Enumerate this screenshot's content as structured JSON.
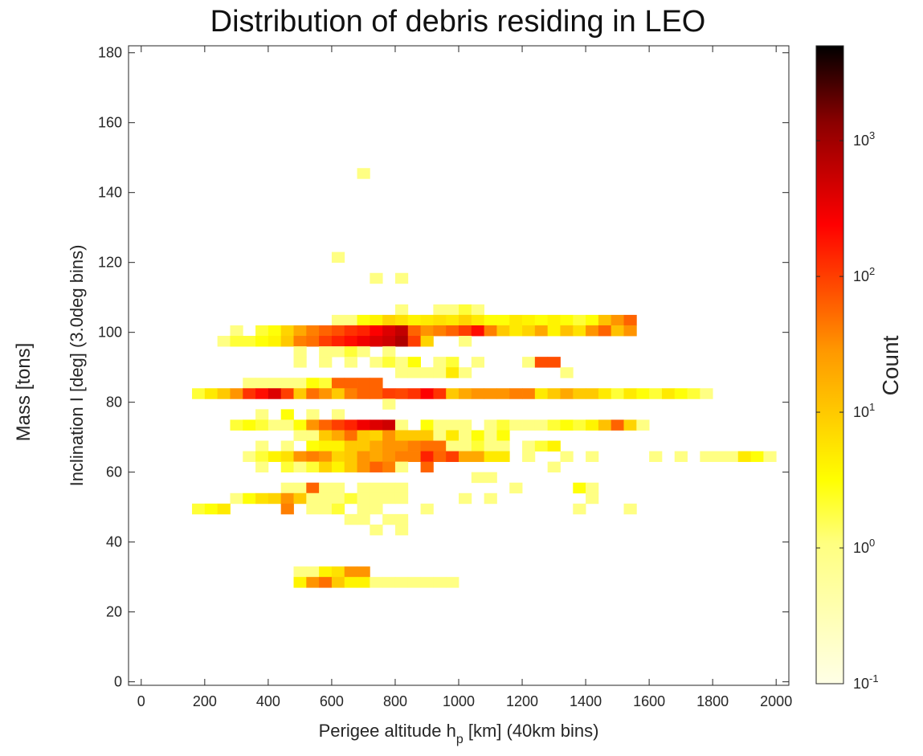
{
  "chart_data": {
    "type": "heatmap",
    "title": "Distribution of debris residing in LEO",
    "side_label": "Mass [tons]",
    "xlabel_pre": "Perigee altitude h",
    "xlabel_sub": "p",
    "xlabel_post": " [km] (40km bins)",
    "ylabel": "Inclination I [deg] (3.0deg bins)",
    "xlim": [
      -40,
      2040
    ],
    "ylim": [
      -1,
      182
    ],
    "xticks": [
      0,
      200,
      400,
      600,
      800,
      1000,
      1200,
      1400,
      1600,
      1800,
      2000
    ],
    "yticks": [
      0,
      20,
      40,
      60,
      80,
      100,
      120,
      140,
      160,
      180
    ],
    "bin_width_km": 40,
    "bin_height_deg": 3,
    "colorbar": {
      "label": "Count",
      "scale": "log",
      "range": [
        0.1,
        5000
      ],
      "ticks": [
        {
          "value": 0.1,
          "base": "10",
          "exp": "-1"
        },
        {
          "value": 1,
          "base": "10",
          "exp": "0"
        },
        {
          "value": 10,
          "base": "10",
          "exp": "1"
        },
        {
          "value": 100,
          "base": "10",
          "exp": "2"
        },
        {
          "value": 1000,
          "base": "10",
          "exp": "3"
        }
      ]
    },
    "cells": [
      [
        680,
        144,
        1
      ],
      [
        600,
        120,
        1
      ],
      [
        720,
        114,
        1
      ],
      [
        800,
        114,
        1
      ],
      [
        800,
        105,
        1
      ],
      [
        920,
        105,
        1
      ],
      [
        960,
        105,
        1
      ],
      [
        1000,
        105,
        2
      ],
      [
        1040,
        105,
        1
      ],
      [
        880,
        102,
        1
      ],
      [
        600,
        102,
        1
      ],
      [
        640,
        102,
        1
      ],
      [
        680,
        102,
        3
      ],
      [
        720,
        102,
        4
      ],
      [
        760,
        102,
        8
      ],
      [
        800,
        102,
        6
      ],
      [
        840,
        102,
        4
      ],
      [
        880,
        102,
        5
      ],
      [
        920,
        102,
        6
      ],
      [
        960,
        102,
        5
      ],
      [
        1000,
        102,
        8
      ],
      [
        1040,
        102,
        5
      ],
      [
        1080,
        102,
        3
      ],
      [
        1120,
        102,
        3
      ],
      [
        1160,
        102,
        5
      ],
      [
        1200,
        102,
        4
      ],
      [
        1240,
        102,
        3
      ],
      [
        1280,
        102,
        4
      ],
      [
        1320,
        102,
        3
      ],
      [
        1360,
        102,
        2
      ],
      [
        1400,
        102,
        3
      ],
      [
        1440,
        102,
        12
      ],
      [
        1480,
        102,
        30
      ],
      [
        1520,
        102,
        60
      ],
      [
        280,
        99,
        1
      ],
      [
        360,
        99,
        2
      ],
      [
        400,
        99,
        3
      ],
      [
        440,
        99,
        8
      ],
      [
        480,
        99,
        20
      ],
      [
        520,
        99,
        40
      ],
      [
        560,
        99,
        60
      ],
      [
        600,
        99,
        80
      ],
      [
        640,
        99,
        120
      ],
      [
        680,
        99,
        150
      ],
      [
        720,
        99,
        250
      ],
      [
        760,
        99,
        400
      ],
      [
        800,
        99,
        600
      ],
      [
        840,
        99,
        60
      ],
      [
        880,
        99,
        30
      ],
      [
        920,
        99,
        40
      ],
      [
        960,
        99,
        60
      ],
      [
        1000,
        99,
        100
      ],
      [
        1040,
        99,
        200
      ],
      [
        1080,
        99,
        40
      ],
      [
        1120,
        99,
        10
      ],
      [
        1160,
        99,
        5
      ],
      [
        1200,
        99,
        8
      ],
      [
        1240,
        99,
        20
      ],
      [
        1280,
        99,
        4
      ],
      [
        1320,
        99,
        12
      ],
      [
        1360,
        99,
        6
      ],
      [
        1400,
        99,
        30
      ],
      [
        1440,
        99,
        60
      ],
      [
        1480,
        99,
        12
      ],
      [
        1520,
        99,
        30
      ],
      [
        240,
        96,
        1
      ],
      [
        280,
        96,
        2
      ],
      [
        320,
        96,
        2
      ],
      [
        360,
        96,
        3
      ],
      [
        400,
        96,
        4
      ],
      [
        440,
        96,
        10
      ],
      [
        480,
        96,
        40
      ],
      [
        520,
        96,
        50
      ],
      [
        560,
        96,
        100
      ],
      [
        600,
        96,
        150
      ],
      [
        640,
        96,
        200
      ],
      [
        680,
        96,
        300
      ],
      [
        720,
        96,
        400
      ],
      [
        760,
        96,
        500
      ],
      [
        800,
        96,
        800
      ],
      [
        840,
        96,
        100
      ],
      [
        880,
        96,
        8
      ],
      [
        1000,
        96,
        1
      ],
      [
        480,
        93,
        1
      ],
      [
        560,
        93,
        1
      ],
      [
        600,
        93,
        1
      ],
      [
        640,
        93,
        2
      ],
      [
        680,
        93,
        1
      ],
      [
        760,
        93,
        1
      ],
      [
        480,
        90,
        1
      ],
      [
        560,
        90,
        1
      ],
      [
        640,
        90,
        1
      ],
      [
        720,
        90,
        1
      ],
      [
        760,
        90,
        2
      ],
      [
        800,
        90,
        1
      ],
      [
        840,
        90,
        3
      ],
      [
        920,
        90,
        1
      ],
      [
        960,
        90,
        2
      ],
      [
        1040,
        90,
        1
      ],
      [
        1200,
        90,
        1
      ],
      [
        1240,
        90,
        80
      ],
      [
        1280,
        90,
        80
      ],
      [
        800,
        87,
        1
      ],
      [
        840,
        87,
        1
      ],
      [
        880,
        87,
        1
      ],
      [
        920,
        87,
        1
      ],
      [
        960,
        87,
        5
      ],
      [
        1000,
        87,
        1
      ],
      [
        1320,
        87,
        1
      ],
      [
        440,
        84,
        1
      ],
      [
        480,
        84,
        1
      ],
      [
        520,
        84,
        3
      ],
      [
        560,
        84,
        2
      ],
      [
        600,
        84,
        60
      ],
      [
        640,
        84,
        60
      ],
      [
        680,
        84,
        60
      ],
      [
        720,
        84,
        60
      ],
      [
        320,
        84,
        1
      ],
      [
        360,
        84,
        1
      ],
      [
        400,
        84,
        1
      ],
      [
        160,
        81,
        2
      ],
      [
        200,
        81,
        5
      ],
      [
        240,
        81,
        10
      ],
      [
        280,
        81,
        30
      ],
      [
        320,
        81,
        120
      ],
      [
        360,
        81,
        200
      ],
      [
        400,
        81,
        400
      ],
      [
        440,
        81,
        100
      ],
      [
        480,
        81,
        10
      ],
      [
        520,
        81,
        50
      ],
      [
        560,
        81,
        30
      ],
      [
        600,
        81,
        10
      ],
      [
        640,
        81,
        40
      ],
      [
        680,
        81,
        60
      ],
      [
        720,
        81,
        60
      ],
      [
        760,
        81,
        100
      ],
      [
        800,
        81,
        90
      ],
      [
        840,
        81,
        120
      ],
      [
        880,
        81,
        250
      ],
      [
        920,
        81,
        120
      ],
      [
        960,
        81,
        10
      ],
      [
        1000,
        81,
        20
      ],
      [
        1040,
        81,
        30
      ],
      [
        1080,
        81,
        30
      ],
      [
        1120,
        81,
        30
      ],
      [
        1160,
        81,
        40
      ],
      [
        1200,
        81,
        40
      ],
      [
        1240,
        81,
        5
      ],
      [
        1280,
        81,
        10
      ],
      [
        1320,
        81,
        20
      ],
      [
        1360,
        81,
        10
      ],
      [
        1400,
        81,
        10
      ],
      [
        1440,
        81,
        5
      ],
      [
        1480,
        81,
        2
      ],
      [
        1520,
        81,
        5
      ],
      [
        1560,
        81,
        3
      ],
      [
        1600,
        81,
        2
      ],
      [
        1640,
        81,
        5
      ],
      [
        1680,
        81,
        3
      ],
      [
        1720,
        81,
        2
      ],
      [
        1760,
        81,
        1
      ],
      [
        760,
        78,
        1
      ],
      [
        360,
        75,
        1
      ],
      [
        440,
        75,
        3
      ],
      [
        520,
        75,
        1
      ],
      [
        600,
        75,
        1
      ],
      [
        280,
        72,
        2
      ],
      [
        320,
        72,
        3
      ],
      [
        360,
        72,
        2
      ],
      [
        400,
        72,
        1
      ],
      [
        440,
        72,
        1
      ],
      [
        480,
        72,
        3
      ],
      [
        520,
        72,
        30
      ],
      [
        560,
        72,
        60
      ],
      [
        600,
        72,
        100
      ],
      [
        640,
        72,
        150
      ],
      [
        680,
        72,
        300
      ],
      [
        720,
        72,
        400
      ],
      [
        760,
        72,
        500
      ],
      [
        800,
        72,
        1
      ],
      [
        880,
        72,
        3
      ],
      [
        920,
        72,
        1
      ],
      [
        960,
        72,
        1
      ],
      [
        1000,
        72,
        1
      ],
      [
        1080,
        72,
        1
      ],
      [
        1120,
        72,
        2
      ],
      [
        1160,
        72,
        1
      ],
      [
        1200,
        72,
        1
      ],
      [
        1240,
        72,
        1
      ],
      [
        1280,
        72,
        2
      ],
      [
        1320,
        72,
        3
      ],
      [
        1360,
        72,
        2
      ],
      [
        1400,
        72,
        4
      ],
      [
        1440,
        72,
        12
      ],
      [
        1480,
        72,
        60
      ],
      [
        1520,
        72,
        8
      ],
      [
        1560,
        72,
        1
      ],
      [
        480,
        69,
        1
      ],
      [
        520,
        69,
        1
      ],
      [
        560,
        69,
        10
      ],
      [
        600,
        69,
        20
      ],
      [
        640,
        69,
        50
      ],
      [
        680,
        69,
        10
      ],
      [
        720,
        69,
        8
      ],
      [
        760,
        69,
        30
      ],
      [
        800,
        69,
        10
      ],
      [
        840,
        69,
        10
      ],
      [
        880,
        69,
        10
      ],
      [
        920,
        69,
        1
      ],
      [
        960,
        69,
        5
      ],
      [
        1000,
        69,
        1
      ],
      [
        1040,
        69,
        3
      ],
      [
        1080,
        69,
        1
      ],
      [
        1120,
        69,
        3
      ],
      [
        360,
        66,
        1
      ],
      [
        440,
        66,
        1
      ],
      [
        520,
        66,
        3
      ],
      [
        560,
        66,
        4
      ],
      [
        600,
        66,
        4
      ],
      [
        640,
        66,
        10
      ],
      [
        680,
        66,
        10
      ],
      [
        720,
        66,
        20
      ],
      [
        760,
        66,
        30
      ],
      [
        800,
        66,
        30
      ],
      [
        840,
        66,
        40
      ],
      [
        880,
        66,
        50
      ],
      [
        920,
        66,
        50
      ],
      [
        960,
        66,
        1
      ],
      [
        1000,
        66,
        1
      ],
      [
        1040,
        66,
        2
      ],
      [
        1080,
        66,
        1
      ],
      [
        1120,
        66,
        1
      ],
      [
        1200,
        66,
        1
      ],
      [
        1240,
        66,
        2
      ],
      [
        1280,
        66,
        4
      ],
      [
        320,
        63,
        1
      ],
      [
        360,
        63,
        2
      ],
      [
        400,
        63,
        4
      ],
      [
        440,
        63,
        6
      ],
      [
        480,
        63,
        30
      ],
      [
        520,
        63,
        40
      ],
      [
        560,
        63,
        30
      ],
      [
        600,
        63,
        8
      ],
      [
        640,
        63,
        10
      ],
      [
        680,
        63,
        30
      ],
      [
        720,
        63,
        20
      ],
      [
        760,
        63,
        30
      ],
      [
        800,
        63,
        40
      ],
      [
        840,
        63,
        40
      ],
      [
        880,
        63,
        150
      ],
      [
        920,
        63,
        60
      ],
      [
        960,
        63,
        100
      ],
      [
        1000,
        63,
        20
      ],
      [
        1040,
        63,
        20
      ],
      [
        1080,
        63,
        5
      ],
      [
        1120,
        63,
        5
      ],
      [
        1200,
        63,
        1
      ],
      [
        1320,
        63,
        1
      ],
      [
        1400,
        63,
        1
      ],
      [
        1600,
        63,
        1
      ],
      [
        1680,
        63,
        1
      ],
      [
        1760,
        63,
        1
      ],
      [
        1800,
        63,
        1
      ],
      [
        1840,
        63,
        1
      ],
      [
        1880,
        63,
        5
      ],
      [
        1920,
        63,
        3
      ],
      [
        1960,
        63,
        1
      ],
      [
        360,
        60,
        1
      ],
      [
        440,
        60,
        2
      ],
      [
        480,
        60,
        1
      ],
      [
        520,
        60,
        2
      ],
      [
        560,
        60,
        8
      ],
      [
        600,
        60,
        4
      ],
      [
        640,
        60,
        10
      ],
      [
        680,
        60,
        30
      ],
      [
        720,
        60,
        60
      ],
      [
        760,
        60,
        40
      ],
      [
        800,
        60,
        1
      ],
      [
        880,
        60,
        60
      ],
      [
        1280,
        60,
        1
      ],
      [
        1040,
        57,
        1
      ],
      [
        1080,
        57,
        1
      ],
      [
        440,
        54,
        1
      ],
      [
        480,
        54,
        1
      ],
      [
        520,
        54,
        60
      ],
      [
        560,
        54,
        1
      ],
      [
        600,
        54,
        1
      ],
      [
        680,
        54,
        1
      ],
      [
        720,
        54,
        1
      ],
      [
        760,
        54,
        1
      ],
      [
        800,
        54,
        1
      ],
      [
        1160,
        54,
        1
      ],
      [
        1360,
        54,
        3
      ],
      [
        1400,
        54,
        1
      ],
      [
        280,
        51,
        1
      ],
      [
        320,
        51,
        3
      ],
      [
        360,
        51,
        6
      ],
      [
        400,
        51,
        8
      ],
      [
        440,
        51,
        30
      ],
      [
        480,
        51,
        10
      ],
      [
        520,
        51,
        1
      ],
      [
        560,
        51,
        1
      ],
      [
        600,
        51,
        1
      ],
      [
        640,
        51,
        2
      ],
      [
        680,
        51,
        1
      ],
      [
        720,
        51,
        1
      ],
      [
        760,
        51,
        1
      ],
      [
        800,
        51,
        1
      ],
      [
        1000,
        51,
        1
      ],
      [
        1080,
        51,
        1
      ],
      [
        1400,
        51,
        1
      ],
      [
        160,
        48,
        2
      ],
      [
        200,
        48,
        3
      ],
      [
        240,
        48,
        5
      ],
      [
        440,
        48,
        40
      ],
      [
        520,
        48,
        1
      ],
      [
        560,
        48,
        1
      ],
      [
        600,
        48,
        2
      ],
      [
        680,
        48,
        1
      ],
      [
        720,
        48,
        1
      ],
      [
        880,
        48,
        1
      ],
      [
        1360,
        48,
        1
      ],
      [
        1520,
        48,
        1
      ],
      [
        640,
        45,
        1
      ],
      [
        680,
        45,
        1
      ],
      [
        760,
        45,
        1
      ],
      [
        800,
        45,
        1
      ],
      [
        720,
        42,
        1
      ],
      [
        800,
        42,
        1
      ],
      [
        480,
        30,
        1
      ],
      [
        520,
        30,
        1
      ],
      [
        560,
        30,
        4
      ],
      [
        600,
        30,
        6
      ],
      [
        640,
        30,
        30
      ],
      [
        680,
        30,
        30
      ],
      [
        480,
        27,
        4
      ],
      [
        520,
        27,
        30
      ],
      [
        560,
        27,
        50
      ],
      [
        600,
        27,
        10
      ],
      [
        640,
        27,
        4
      ],
      [
        680,
        27,
        4
      ],
      [
        720,
        27,
        1
      ],
      [
        760,
        27,
        1
      ],
      [
        800,
        27,
        1
      ],
      [
        840,
        27,
        1
      ],
      [
        880,
        27,
        1
      ],
      [
        920,
        27,
        1
      ],
      [
        960,
        27,
        1
      ]
    ]
  }
}
